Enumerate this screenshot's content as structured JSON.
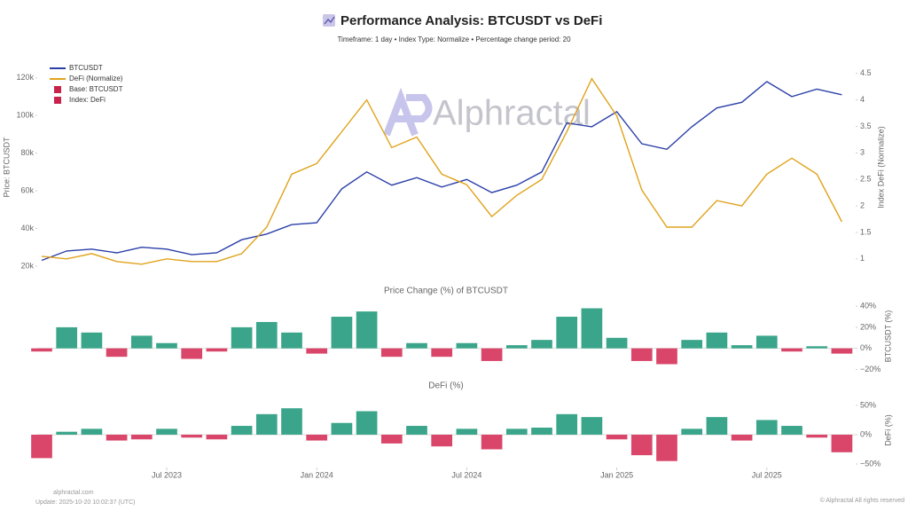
{
  "header": {
    "title": "Performance Analysis: BTCUSDT vs DeFi",
    "subtitle": "Timeframe: 1 day  •  Index Type: Normalize  •  Percentage change period: 20"
  },
  "watermark": "Alphractal",
  "chart_data": [
    {
      "type": "line",
      "y_label": "Price: BTCUSDT",
      "y2_label": "Index DeFi (Normalize)",
      "x": [
        "2023-02",
        "2023-03",
        "2023-04",
        "2023-05",
        "2023-06",
        "2023-07",
        "2023-08",
        "2023-09",
        "2023-10",
        "2023-11",
        "2023-12",
        "2024-01",
        "2024-02",
        "2024-03",
        "2024-04",
        "2024-05",
        "2024-06",
        "2024-07",
        "2024-08",
        "2024-09",
        "2024-10",
        "2024-11",
        "2024-12",
        "2025-01",
        "2025-02",
        "2025-03",
        "2025-04",
        "2025-05",
        "2025-06",
        "2025-07",
        "2025-08",
        "2025-09",
        "2025-10"
      ],
      "series": [
        {
          "name": "BTCUSDT",
          "color": "#2b3fa8",
          "values": [
            23000,
            28000,
            29000,
            27000,
            30000,
            29000,
            26000,
            27000,
            34000,
            37000,
            42000,
            43000,
            61000,
            70000,
            63000,
            67000,
            62000,
            66000,
            59000,
            63000,
            70000,
            96000,
            94000,
            102000,
            85000,
            82000,
            94000,
            104000,
            107000,
            118000,
            110000,
            114000,
            111000
          ]
        },
        {
          "name": "DeFi (Normalize)",
          "color": "#e0a31c",
          "axis": "y2",
          "values": [
            1.05,
            1.0,
            1.1,
            0.95,
            0.9,
            1.0,
            0.95,
            0.95,
            1.1,
            1.6,
            2.6,
            2.8,
            3.4,
            4.0,
            3.1,
            3.3,
            2.6,
            2.4,
            1.8,
            2.2,
            2.5,
            3.4,
            4.4,
            3.7,
            2.3,
            1.6,
            1.6,
            2.1,
            2.0,
            2.6,
            2.9,
            2.6,
            1.7
          ]
        }
      ],
      "legend_items": [
        {
          "name": "Base: BTCUSDT",
          "color": "#c8234c"
        },
        {
          "name": "Index: DeFi",
          "color": "#c8234c"
        }
      ],
      "ylim": [
        19000,
        126000
      ],
      "yticks": [
        {
          "value": 20000,
          "label": "20k"
        },
        {
          "value": 40000,
          "label": "40k"
        },
        {
          "value": 60000,
          "label": "60k"
        },
        {
          "value": 80000,
          "label": "80k"
        },
        {
          "value": 100000,
          "label": "100k"
        },
        {
          "value": 120000,
          "label": "120k"
        }
      ],
      "y2lim": [
        0.83,
        4.63
      ],
      "y2ticks": [
        1,
        1.5,
        2,
        2.5,
        3,
        3.5,
        4,
        4.5
      ]
    },
    {
      "type": "bar",
      "title": "Price Change (%) of BTCUSDT",
      "y_label": "BTCUSDT (%)",
      "x": [
        "2023-02",
        "2023-03",
        "2023-04",
        "2023-05",
        "2023-06",
        "2023-07",
        "2023-08",
        "2023-09",
        "2023-10",
        "2023-11",
        "2023-12",
        "2024-01",
        "2024-02",
        "2024-03",
        "2024-04",
        "2024-05",
        "2024-06",
        "2024-07",
        "2024-08",
        "2024-09",
        "2024-10",
        "2024-11",
        "2024-12",
        "2025-01",
        "2025-02",
        "2025-03",
        "2025-04",
        "2025-05",
        "2025-06",
        "2025-07",
        "2025-08",
        "2025-09",
        "2025-10"
      ],
      "values": [
        -3,
        20,
        15,
        -8,
        12,
        5,
        -10,
        -3,
        20,
        25,
        15,
        -5,
        30,
        35,
        -8,
        5,
        -8,
        5,
        -12,
        3,
        8,
        30,
        38,
        10,
        -12,
        -15,
        8,
        15,
        3,
        12,
        -3,
        2,
        -5
      ],
      "positive_color": "#3aa58a",
      "negative_color": "#d9466a",
      "ylim": [
        -23,
        46
      ],
      "yticks": [
        {
          "value": -20,
          "label": "−20%"
        },
        {
          "value": 0,
          "label": "0%"
        },
        {
          "value": 20,
          "label": "20%"
        },
        {
          "value": 40,
          "label": "40%"
        }
      ]
    },
    {
      "type": "bar",
      "title": "DeFi (%)",
      "y_label": "DeFi (%)",
      "x": [
        "2023-02",
        "2023-03",
        "2023-04",
        "2023-05",
        "2023-06",
        "2023-07",
        "2023-08",
        "2023-09",
        "2023-10",
        "2023-11",
        "2023-12",
        "2024-01",
        "2024-02",
        "2024-03",
        "2024-04",
        "2024-05",
        "2024-06",
        "2024-07",
        "2024-08",
        "2024-09",
        "2024-10",
        "2024-11",
        "2024-12",
        "2025-01",
        "2025-02",
        "2025-03",
        "2025-04",
        "2025-05",
        "2025-06",
        "2025-07",
        "2025-08",
        "2025-09",
        "2025-10"
      ],
      "values": [
        -40,
        5,
        10,
        -10,
        -8,
        10,
        -5,
        -8,
        15,
        35,
        45,
        -10,
        20,
        40,
        -15,
        15,
        -20,
        10,
        -25,
        10,
        12,
        35,
        30,
        -8,
        -35,
        -45,
        10,
        30,
        -10,
        25,
        15,
        -5,
        -30
      ],
      "positive_color": "#3aa58a",
      "negative_color": "#d9466a",
      "ylim": [
        -53,
        68
      ],
      "yticks": [
        {
          "value": -50,
          "label": "−50%"
        },
        {
          "value": 0,
          "label": "0%"
        },
        {
          "value": 50,
          "label": "50%"
        }
      ],
      "xticks": [
        {
          "value": "2023-07",
          "label": "Jul 2023"
        },
        {
          "value": "2024-01",
          "label": "Jan 2024"
        },
        {
          "value": "2024-07",
          "label": "Jul 2024"
        },
        {
          "value": "2025-01",
          "label": "Jan 2025"
        },
        {
          "value": "2025-07",
          "label": "Jul 2025"
        }
      ]
    }
  ],
  "footer": {
    "site": "alphractal.com",
    "update": "Update: 2025-10-20 10:02:37 (UTC)",
    "copyright": "© Alphractal All rights reserved"
  }
}
